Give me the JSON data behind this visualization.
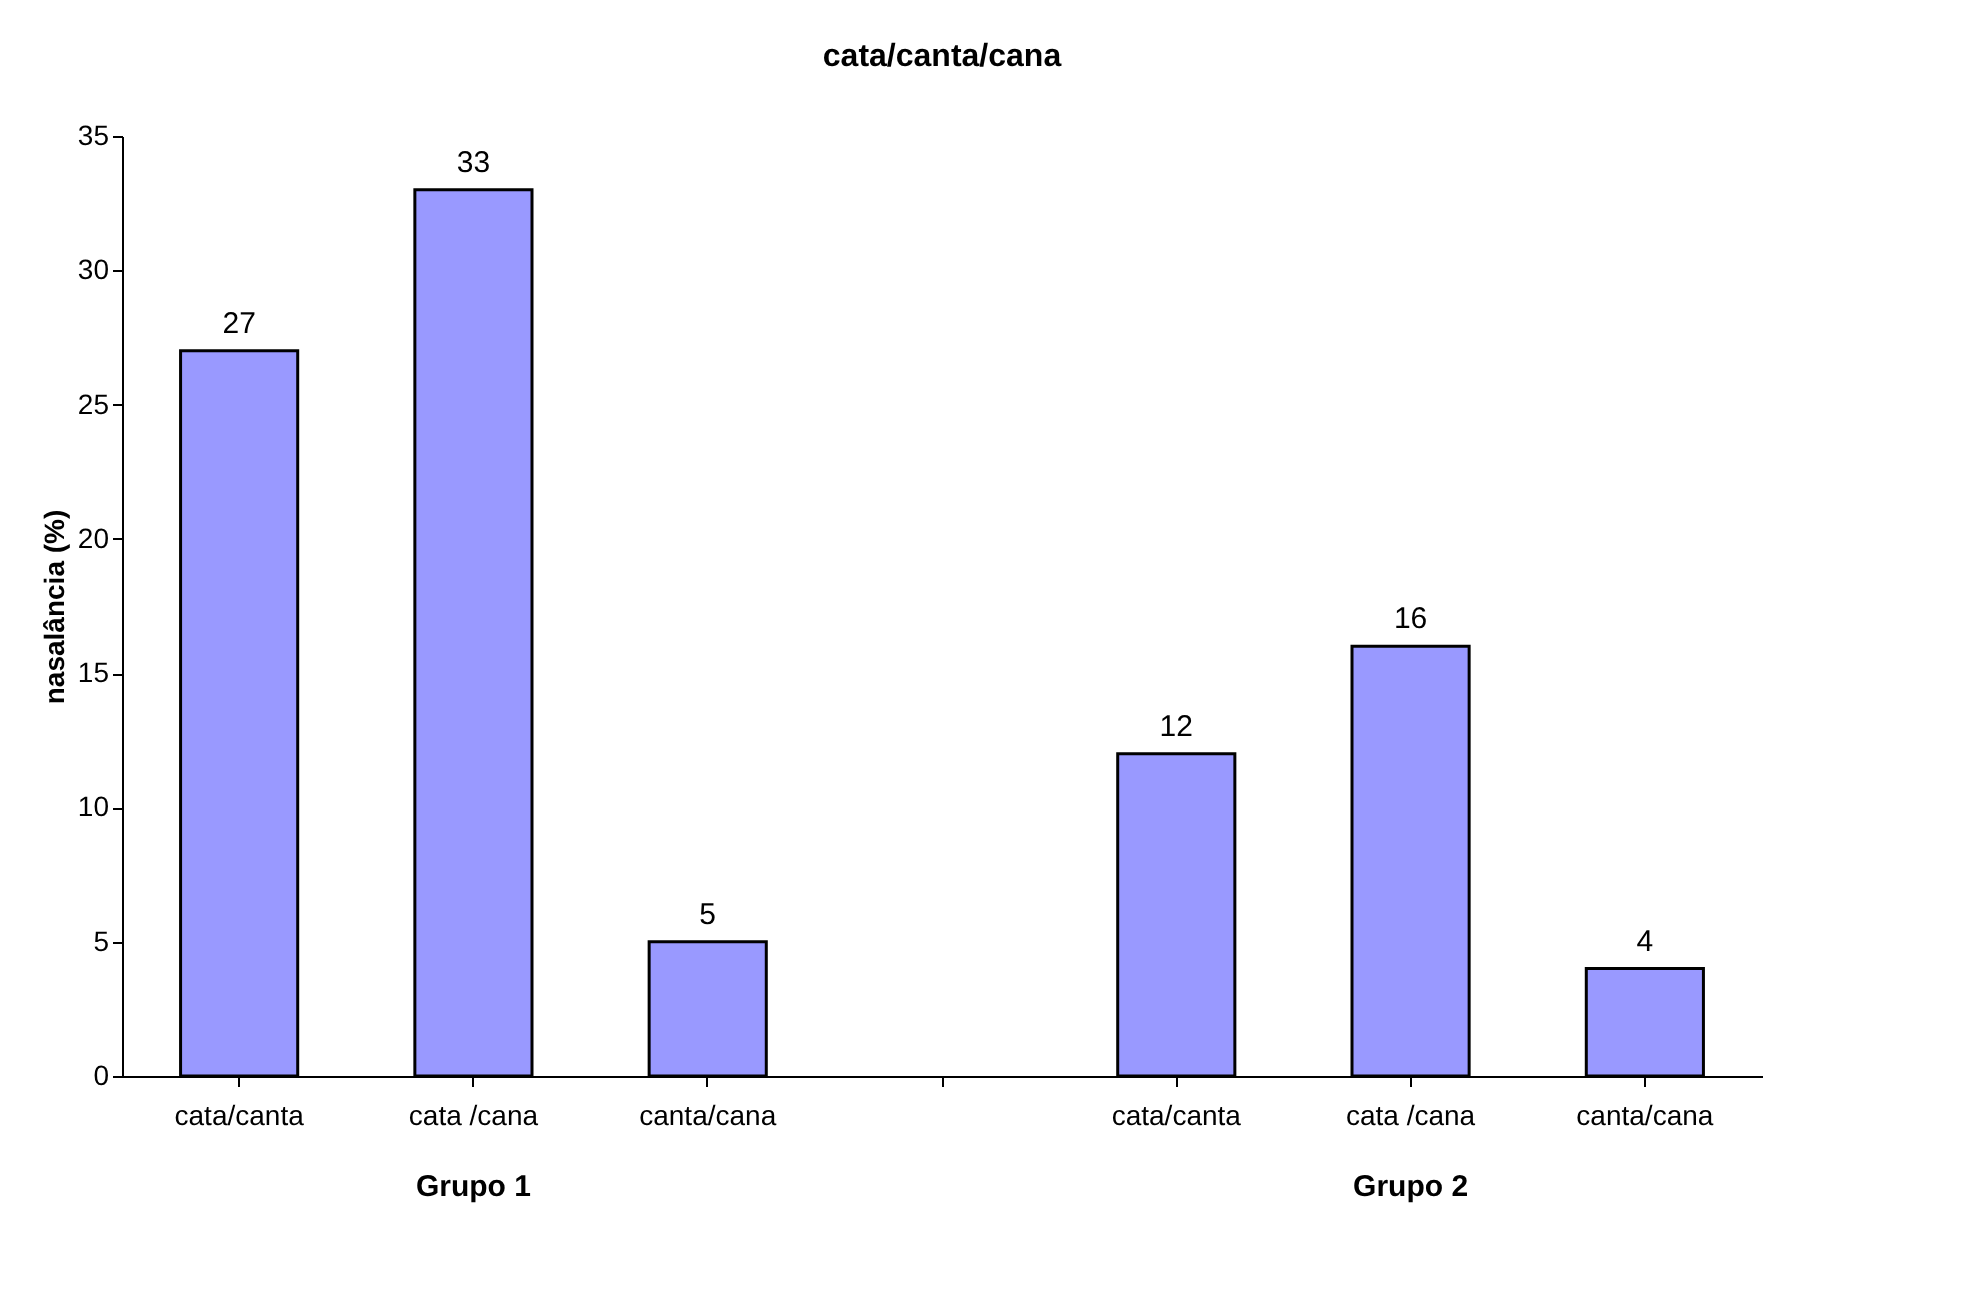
{
  "chart_data": {
    "type": "bar",
    "title": "cata/canta/cana",
    "ylabel": "nasalância (%)",
    "categories": [
      "cata/canta",
      "cata /cana",
      "canta/cana",
      null,
      "cata/canta",
      "cata /cana",
      "canta/cana"
    ],
    "values": [
      27,
      33,
      5,
      null,
      12,
      16,
      4
    ],
    "color": "#9999ff",
    "ylim": [
      0,
      35
    ],
    "yticks": [
      0,
      5,
      10,
      15,
      20,
      25,
      30,
      35
    ],
    "grid": false,
    "data_labels": true,
    "annotations": [
      "Grupo 1",
      "Grupo 2"
    ]
  }
}
